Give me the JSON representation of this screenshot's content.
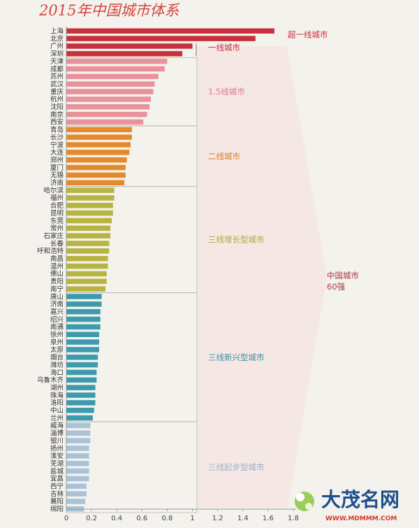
{
  "chart_data": {
    "type": "bar",
    "orientation": "horizontal",
    "title": "2015年中国城市体系",
    "xlim": [
      0,
      1.8
    ],
    "x_ticks": [
      "0",
      "0.2",
      "0.4",
      "0.6",
      "0.8",
      "1",
      "1.2",
      "1.4",
      "1.6",
      "1.8"
    ],
    "categories": [
      "上海",
      "北京",
      "广州",
      "深圳",
      "天津",
      "成都",
      "苏州",
      "武汉",
      "重庆",
      "杭州",
      "沈阳",
      "南京",
      "西安",
      "青岛",
      "长沙",
      "宁波",
      "大连",
      "郑州",
      "厦门",
      "无锡",
      "济南",
      "哈尔滨",
      "福州",
      "合肥",
      "昆明",
      "东莞",
      "常州",
      "石家庄",
      "长春",
      "呼和浩特",
      "南昌",
      "温州",
      "佛山",
      "贵阳",
      "南宁",
      "唐山",
      "济南",
      "嘉兴",
      "绍兴",
      "南通",
      "徐州",
      "泉州",
      "太原",
      "烟台",
      "潍坊",
      "海口",
      "乌鲁木齐",
      "湖州",
      "珠海",
      "洛阳",
      "中山",
      "兰州",
      "威海",
      "淄博",
      "银川",
      "扬州",
      "淮安",
      "芜湖",
      "盐城",
      "宜昌",
      "西宁",
      "吉林",
      "襄阳",
      "绵阳"
    ],
    "values": [
      1.65,
      1.5,
      1.0,
      0.92,
      0.8,
      0.78,
      0.73,
      0.7,
      0.69,
      0.67,
      0.66,
      0.64,
      0.61,
      0.52,
      0.52,
      0.51,
      0.5,
      0.48,
      0.47,
      0.47,
      0.46,
      0.38,
      0.38,
      0.37,
      0.37,
      0.36,
      0.35,
      0.35,
      0.34,
      0.34,
      0.33,
      0.33,
      0.32,
      0.32,
      0.31,
      0.28,
      0.28,
      0.27,
      0.27,
      0.27,
      0.26,
      0.26,
      0.26,
      0.25,
      0.25,
      0.24,
      0.24,
      0.23,
      0.23,
      0.23,
      0.22,
      0.21,
      0.19,
      0.19,
      0.19,
      0.18,
      0.18,
      0.18,
      0.18,
      0.18,
      0.16,
      0.16,
      0.15,
      0.14
    ],
    "tiers": [
      {
        "name": "超一线城市",
        "start": 0,
        "end": 1,
        "color": "#c8303a",
        "label_color": "#c8303a"
      },
      {
        "name": "一线城市",
        "start": 2,
        "end": 3,
        "color": "#c8303a",
        "label_color": "#c8303a"
      },
      {
        "name": "1.5线城市",
        "start": 4,
        "end": 12,
        "color": "#e8929c",
        "label_color": "#e07a88"
      },
      {
        "name": "二线城市",
        "start": 13,
        "end": 20,
        "color": "#e58a2c",
        "label_color": "#e07b1f"
      },
      {
        "name": "三线增长型城市",
        "start": 21,
        "end": 34,
        "color": "#b7b442",
        "label_color": "#b0aa3a"
      },
      {
        "name": "三线新兴型城市",
        "start": 35,
        "end": 51,
        "color": "#3d9bae",
        "label_color": "#3b8fa3"
      },
      {
        "name": "三线起步型城市",
        "start": 52,
        "end": 63,
        "color": "#a8c2d8",
        "label_color": "#9bb2c8"
      }
    ],
    "group_label_line1": "中国城市",
    "group_label_line2": "60强"
  },
  "watermark": {
    "text": "大茂名网",
    "url": "WWW.MDMMM.COM"
  }
}
